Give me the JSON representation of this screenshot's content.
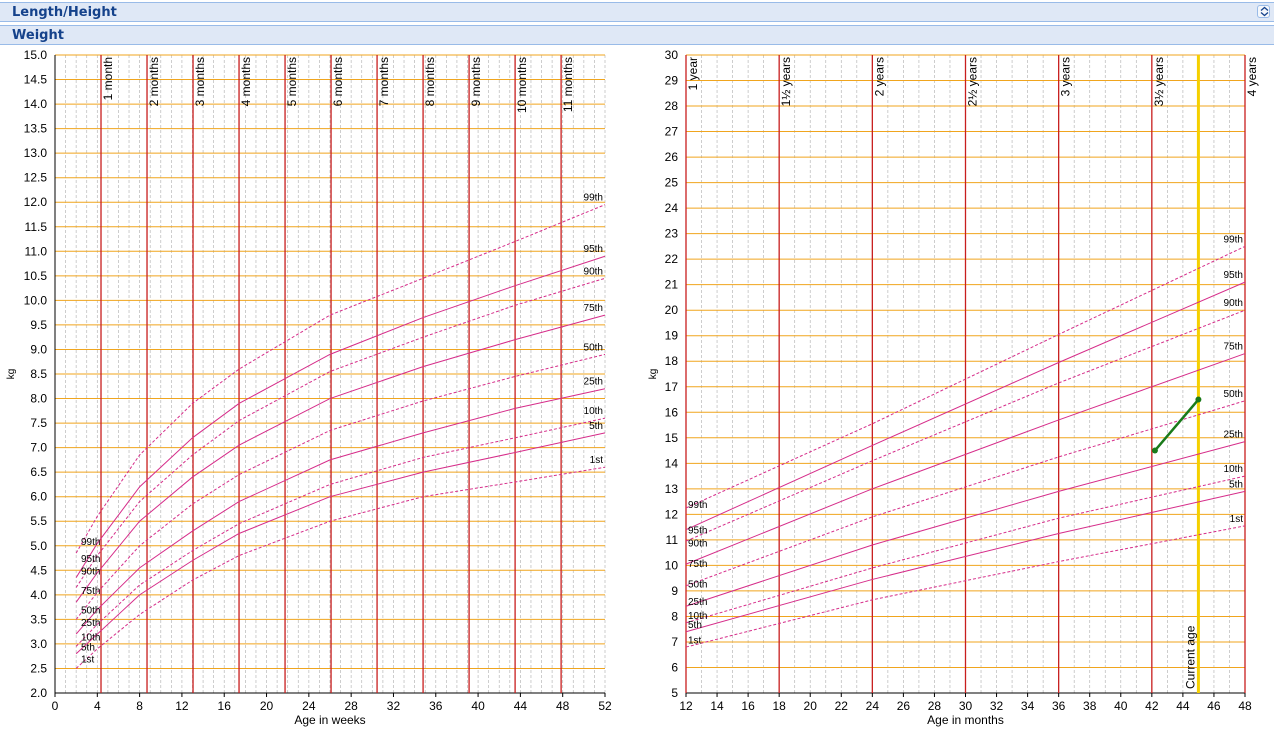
{
  "panels": {
    "length_height": {
      "title": "Length/Height"
    },
    "weight": {
      "title": "Weight"
    }
  },
  "colors": {
    "percentile_line": "#d62d8a",
    "grid_major": "#f0a51e",
    "grid_minor": "#b8b8b8",
    "month_line": "#c81e1e",
    "current_age": "#f5d000",
    "measurement": "#1a7a1a",
    "panel_bg": "#dfe8f6",
    "panel_text": "#15428b"
  },
  "chart_data": [
    {
      "type": "line",
      "xlabel": "Age in weeks",
      "ylabel": "kg",
      "xlim": [
        0,
        52
      ],
      "ylim": [
        2.0,
        15.0
      ],
      "x_ticks": [
        0,
        4,
        8,
        12,
        16,
        20,
        24,
        28,
        32,
        36,
        40,
        44,
        48,
        52
      ],
      "y_ticks": [
        "2.0",
        "2.5",
        "3.0",
        "3.5",
        "4.0",
        "4.5",
        "5.0",
        "5.5",
        "6.0",
        "6.5",
        "7.0",
        "7.5",
        "8.0",
        "8.5",
        "9.0",
        "9.5",
        "10.0",
        "10.5",
        "11.0",
        "11.5",
        "12.0",
        "12.5",
        "13.0",
        "13.5",
        "14.0",
        "14.5",
        "15.0"
      ],
      "month_markers": [
        {
          "x": 4.35,
          "label": "1 month"
        },
        {
          "x": 8.7,
          "label": "2 months"
        },
        {
          "x": 13.05,
          "label": "3 months"
        },
        {
          "x": 17.4,
          "label": "4 months"
        },
        {
          "x": 21.75,
          "label": "5 months"
        },
        {
          "x": 26.1,
          "label": "6 months"
        },
        {
          "x": 30.45,
          "label": "7 months"
        },
        {
          "x": 34.8,
          "label": "8 months"
        },
        {
          "x": 39.15,
          "label": "9 months"
        },
        {
          "x": 43.5,
          "label": "10 months"
        },
        {
          "x": 47.85,
          "label": "11 months"
        }
      ],
      "series": [
        {
          "name": "1st",
          "dashed": true,
          "x": [
            2,
            4,
            8,
            13,
            17.4,
            26,
            34.8,
            43.5,
            52
          ],
          "values": [
            2.5,
            2.9,
            3.6,
            4.3,
            4.8,
            5.5,
            6.0,
            6.3,
            6.6
          ]
        },
        {
          "name": "5th",
          "dashed": false,
          "x": [
            2,
            4,
            8,
            13,
            17.4,
            26,
            34.8,
            43.5,
            52
          ],
          "values": [
            2.8,
            3.2,
            4.0,
            4.7,
            5.25,
            6.0,
            6.5,
            6.9,
            7.3
          ]
        },
        {
          "name": "10th",
          "dashed": true,
          "x": [
            2,
            4,
            8,
            13,
            17.4,
            26,
            34.8,
            43.5,
            52
          ],
          "values": [
            2.95,
            3.4,
            4.2,
            4.9,
            5.45,
            6.25,
            6.8,
            7.2,
            7.6
          ]
        },
        {
          "name": "25th",
          "dashed": false,
          "x": [
            2,
            4,
            8,
            13,
            17.4,
            26,
            34.8,
            43.5,
            52
          ],
          "values": [
            3.2,
            3.7,
            4.55,
            5.3,
            5.9,
            6.75,
            7.3,
            7.8,
            8.2
          ]
        },
        {
          "name": "50th",
          "dashed": true,
          "x": [
            2,
            4,
            8,
            13,
            17.4,
            26,
            34.8,
            43.5,
            52
          ],
          "values": [
            3.5,
            4.05,
            5.0,
            5.85,
            6.45,
            7.35,
            7.95,
            8.45,
            8.9
          ]
        },
        {
          "name": "75th",
          "dashed": false,
          "x": [
            2,
            4,
            8,
            13,
            17.4,
            26,
            34.8,
            43.5,
            52
          ],
          "values": [
            3.85,
            4.45,
            5.5,
            6.4,
            7.05,
            8.0,
            8.65,
            9.2,
            9.7
          ]
        },
        {
          "name": "90th",
          "dashed": true,
          "x": [
            2,
            4,
            8,
            13,
            17.4,
            26,
            34.8,
            43.5,
            52
          ],
          "values": [
            4.15,
            4.8,
            5.9,
            6.85,
            7.55,
            8.55,
            9.25,
            9.9,
            10.45
          ]
        },
        {
          "name": "95th",
          "dashed": false,
          "x": [
            2,
            4,
            8,
            13,
            17.4,
            26,
            34.8,
            43.5,
            52
          ],
          "values": [
            4.35,
            5.05,
            6.2,
            7.2,
            7.9,
            8.9,
            9.65,
            10.3,
            10.9
          ]
        },
        {
          "name": "99th",
          "dashed": true,
          "x": [
            2,
            4,
            8,
            13,
            17.4,
            26,
            34.8,
            43.5,
            52
          ],
          "values": [
            4.85,
            5.6,
            6.85,
            7.9,
            8.6,
            9.7,
            10.45,
            11.2,
            11.95
          ]
        }
      ],
      "start_labels": [
        {
          "name": "99th",
          "y": 5.1
        },
        {
          "name": "95th",
          "y": 4.75
        },
        {
          "name": "90th",
          "y": 4.5
        },
        {
          "name": "75th",
          "y": 4.1
        },
        {
          "name": "50th",
          "y": 3.7
        },
        {
          "name": "25th",
          "y": 3.45
        },
        {
          "name": "10th",
          "y": 3.15
        },
        {
          "name": "5th",
          "y": 2.95
        },
        {
          "name": "1st",
          "y": 2.7
        }
      ]
    },
    {
      "type": "line",
      "xlabel": "Age in months",
      "ylabel": "kg",
      "xlim": [
        12,
        48
      ],
      "ylim": [
        5,
        30
      ],
      "x_ticks": [
        12,
        14,
        16,
        18,
        20,
        22,
        24,
        26,
        28,
        30,
        32,
        34,
        36,
        38,
        40,
        42,
        44,
        46,
        48
      ],
      "y_ticks": [
        "5",
        "6",
        "7",
        "8",
        "9",
        "10",
        "11",
        "12",
        "13",
        "14",
        "15",
        "16",
        "17",
        "18",
        "19",
        "20",
        "21",
        "22",
        "23",
        "24",
        "25",
        "26",
        "27",
        "28",
        "29",
        "30"
      ],
      "month_markers": [
        {
          "x": 12,
          "label": "1 year"
        },
        {
          "x": 18,
          "label": "1½ years"
        },
        {
          "x": 24,
          "label": "2 years"
        },
        {
          "x": 30,
          "label": "2½ years"
        },
        {
          "x": 36,
          "label": "3 years"
        },
        {
          "x": 42,
          "label": "3½ years"
        },
        {
          "x": 48,
          "label": "4 years"
        }
      ],
      "current_age": {
        "x": 45,
        "label": "Current age"
      },
      "measurements": {
        "x": [
          42.2,
          45
        ],
        "values": [
          14.5,
          16.5
        ]
      },
      "series": [
        {
          "name": "1st",
          "dashed": true,
          "x": [
            12,
            24,
            36,
            48
          ],
          "values": [
            6.8,
            8.65,
            10.15,
            11.55
          ]
        },
        {
          "name": "5th",
          "dashed": false,
          "x": [
            12,
            24,
            36,
            48
          ],
          "values": [
            7.4,
            9.45,
            11.25,
            12.9
          ]
        },
        {
          "name": "10th",
          "dashed": true,
          "x": [
            12,
            24,
            36,
            48
          ],
          "values": [
            7.75,
            9.9,
            11.85,
            13.5
          ]
        },
        {
          "name": "25th",
          "dashed": false,
          "x": [
            12,
            24,
            36,
            48
          ],
          "values": [
            8.4,
            10.8,
            12.9,
            14.85
          ]
        },
        {
          "name": "50th",
          "dashed": true,
          "x": [
            12,
            24,
            36,
            48
          ],
          "values": [
            9.2,
            11.9,
            14.25,
            16.45
          ]
        },
        {
          "name": "75th",
          "dashed": false,
          "x": [
            12,
            24,
            36,
            48
          ],
          "values": [
            10.05,
            13.0,
            15.7,
            18.3
          ]
        },
        {
          "name": "90th",
          "dashed": true,
          "x": [
            12,
            24,
            36,
            48
          ],
          "values": [
            10.95,
            14.1,
            17.15,
            20.0
          ]
        },
        {
          "name": "95th",
          "dashed": false,
          "x": [
            12,
            24,
            36,
            48
          ],
          "values": [
            11.4,
            14.7,
            17.95,
            21.1
          ]
        },
        {
          "name": "99th",
          "dashed": true,
          "x": [
            12,
            24,
            36,
            48
          ],
          "values": [
            12.25,
            15.55,
            19.05,
            22.5
          ]
        }
      ],
      "start_labels": [
        {
          "name": "99th",
          "y": 12.4
        },
        {
          "name": "95th",
          "y": 11.4
        },
        {
          "name": "90th",
          "y": 10.9
        },
        {
          "name": "75th",
          "y": 10.1
        },
        {
          "name": "50th",
          "y": 9.3
        },
        {
          "name": "25th",
          "y": 8.6
        },
        {
          "name": "10th",
          "y": 8.05
        },
        {
          "name": "5th",
          "y": 7.7
        },
        {
          "name": "1st",
          "y": 7.1
        }
      ]
    }
  ]
}
